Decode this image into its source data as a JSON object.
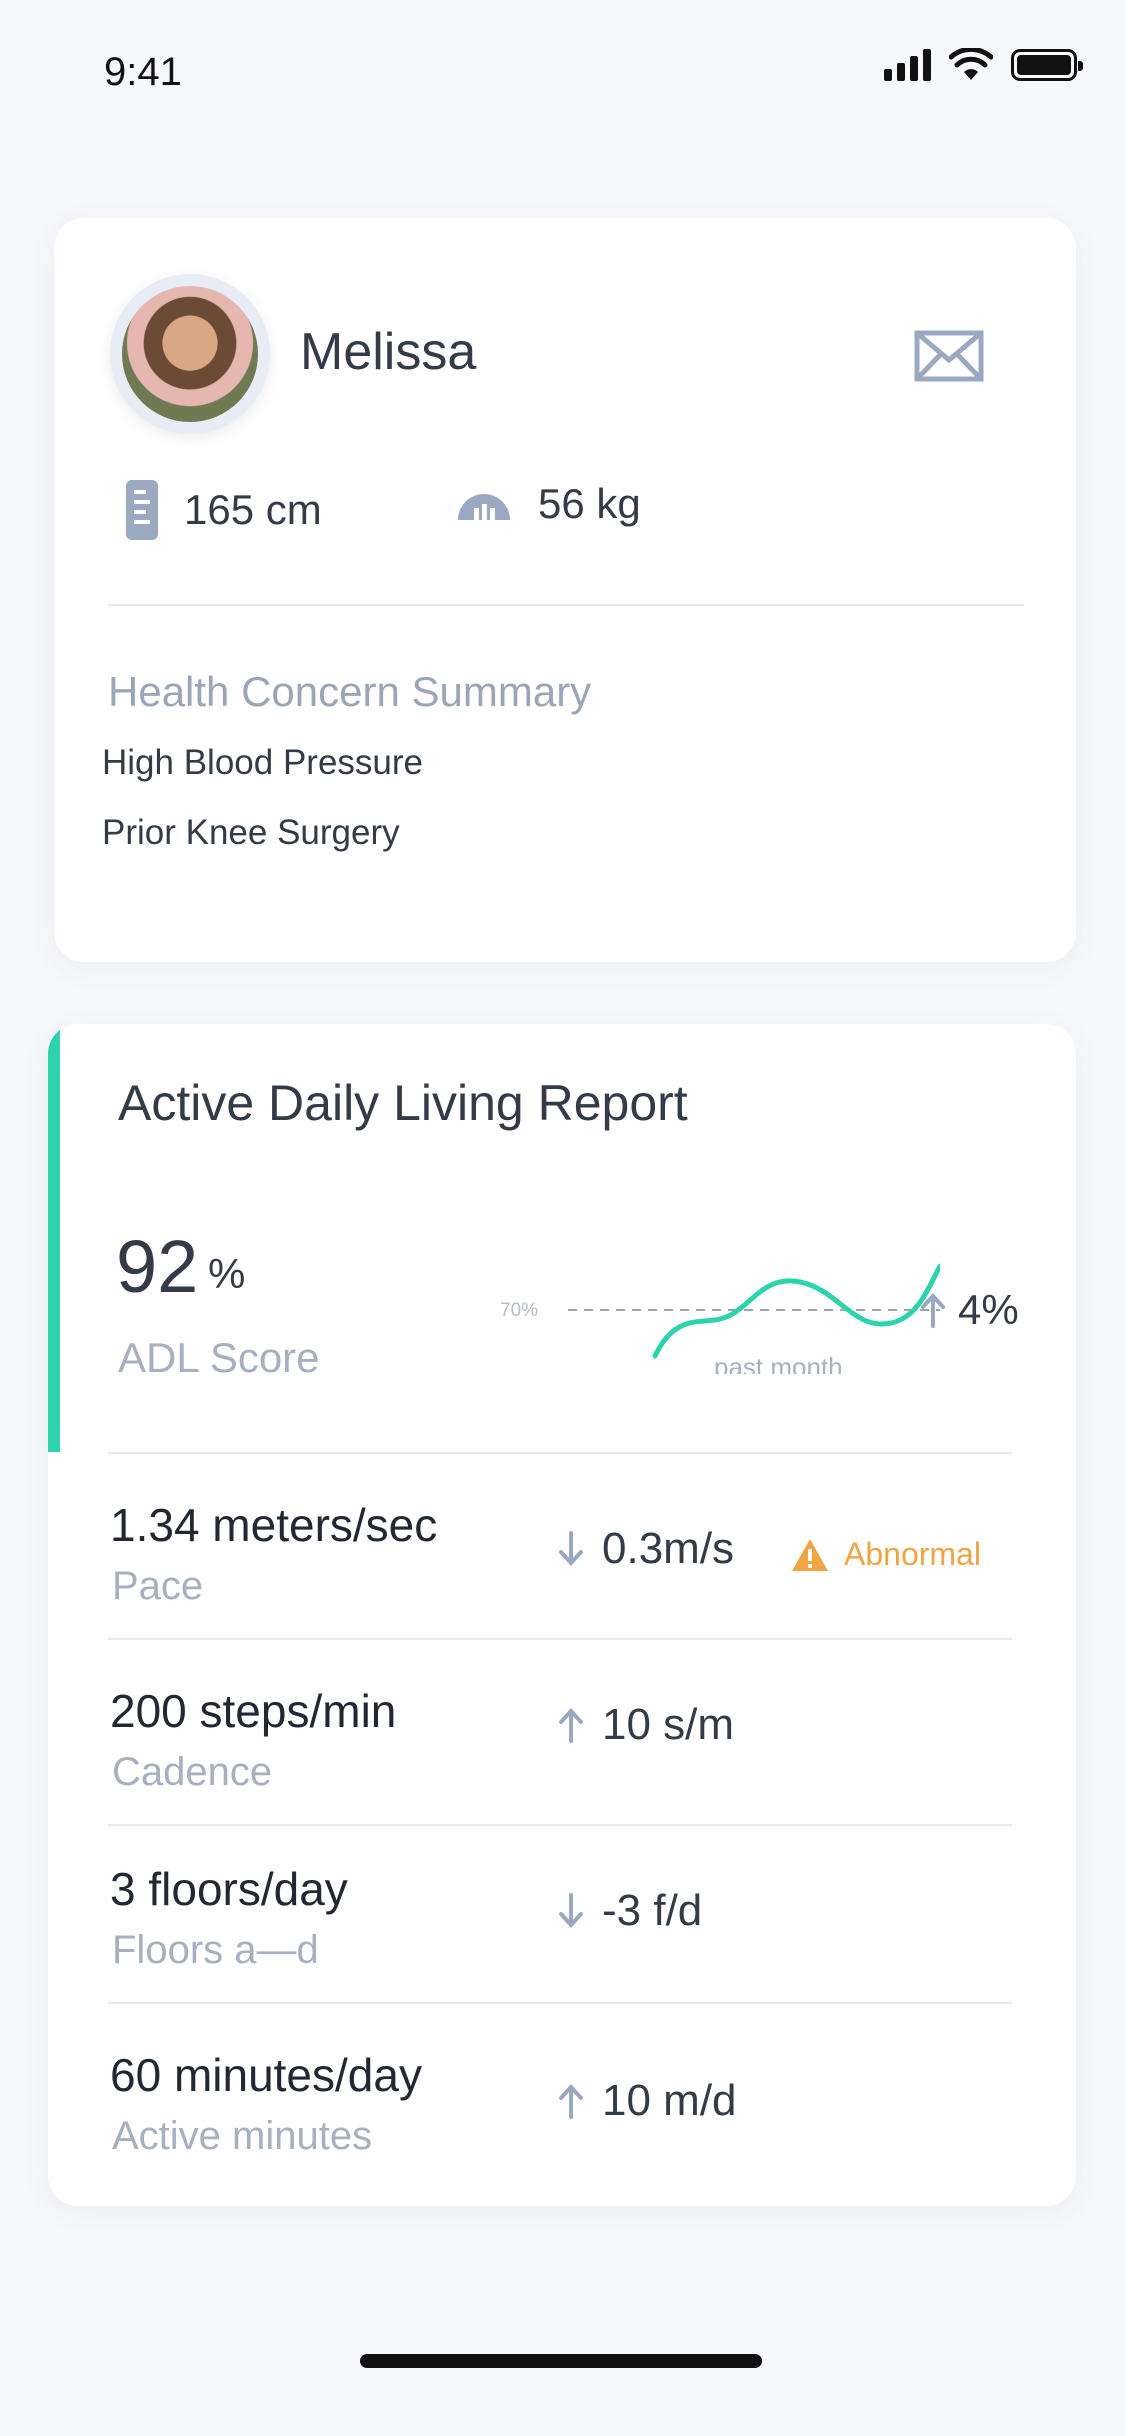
{
  "status_bar": {
    "time": "9:41"
  },
  "profile": {
    "name": "Melissa",
    "height": "165 cm",
    "weight": "56 kg",
    "summary_title": "Health Concern Summary",
    "concerns": [
      "High Blood Pressure",
      "Prior Knee Surgery"
    ]
  },
  "adl": {
    "title": "Active Daily Living Report",
    "score": "92",
    "score_unit": "%",
    "score_label": "ADL Score",
    "chart_threshold_label": "70%",
    "chart_caption": "past month",
    "trend_value": "4%",
    "metrics": [
      {
        "value": "1.34 meters/sec",
        "label": "Pace",
        "change": "0.3m/s",
        "direction": "down",
        "flag": "Abnormal"
      },
      {
        "value": "200 steps/min",
        "label": "Cadence",
        "change": "10 s/m",
        "direction": "up"
      },
      {
        "value": "3  floors/day",
        "label": "Floors a—d",
        "change": "-3 f/d",
        "direction": "down"
      },
      {
        "value": "60 minutes/day",
        "label": "Active minutes",
        "change": "10 m/d",
        "direction": "up"
      }
    ]
  },
  "colors": {
    "accent": "#2dd3ad",
    "warning": "#f0a444",
    "muted": "#a6b0c0",
    "icon": "#9aa8c2"
  }
}
